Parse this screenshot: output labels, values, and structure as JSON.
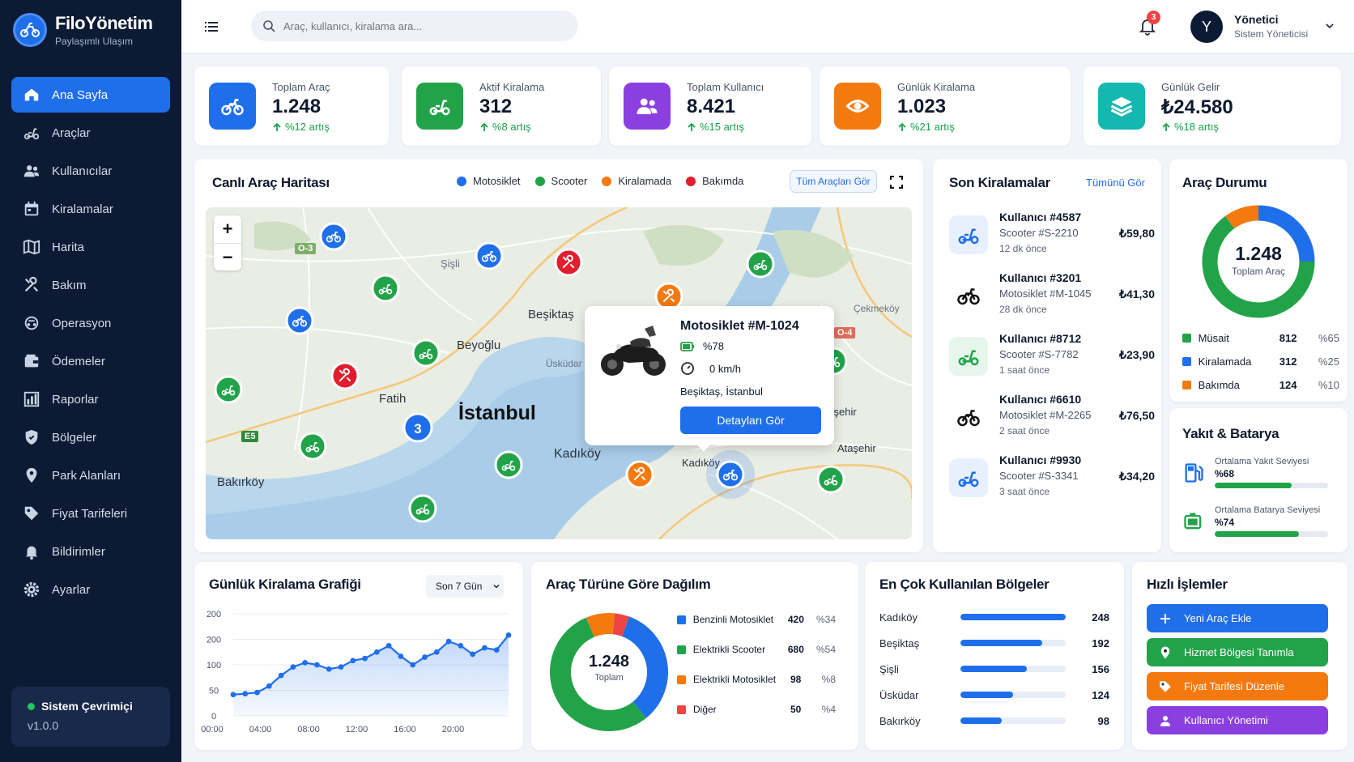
{
  "app": {
    "title": "FiloYönetim",
    "subtitle": "Paylaşımlı Ulaşım"
  },
  "sidebar": {
    "items": [
      {
        "label": "Ana Sayfa",
        "icon": "home-icon",
        "active": true
      },
      {
        "label": "Araçlar",
        "icon": "scooter-icon"
      },
      {
        "label": "Kullanıcılar",
        "icon": "users-icon"
      },
      {
        "label": "Kiralamalar",
        "icon": "calendar-icon"
      },
      {
        "label": "Harita",
        "icon": "map-icon"
      },
      {
        "label": "Bakım",
        "icon": "tools-icon"
      },
      {
        "label": "Operasyon",
        "icon": "operation-icon"
      },
      {
        "label": "Ödemeler",
        "icon": "wallet-icon"
      },
      {
        "label": "Raporlar",
        "icon": "chart-icon"
      },
      {
        "label": "Bölgeler",
        "icon": "shield-icon"
      },
      {
        "label": "Park Alanları",
        "icon": "pin-icon"
      },
      {
        "label": "Fiyat Tarifeleri",
        "icon": "tag-icon"
      },
      {
        "label": "Bildirimler",
        "icon": "bell-icon"
      },
      {
        "label": "Ayarlar",
        "icon": "gear-icon"
      }
    ],
    "status": {
      "label": "Sistem Çevrimiçi",
      "version": "v1.0.0"
    }
  },
  "topbar": {
    "search_placeholder": "Araç, kullanıcı, kiralama ara...",
    "notifications": "3",
    "user": {
      "initial": "Y",
      "name": "Yönetici",
      "role": "Sistem Yöneticisi"
    }
  },
  "stats": [
    {
      "label": "Toplam Araç",
      "value": "1.248",
      "trend": "%12 artış",
      "color": "#1f6feb",
      "icon": "motorcycle-icon"
    },
    {
      "label": "Aktif Kiralama",
      "value": "312",
      "trend": "%8 artış",
      "color": "#22a34a",
      "icon": "scooter-icon"
    },
    {
      "label": "Toplam Kullanıcı",
      "value": "8.421",
      "trend": "%15 artış",
      "color": "#8b3fe0",
      "icon": "users-icon"
    },
    {
      "label": "Günlük Kiralama",
      "value": "1.023",
      "trend": "%21 artış",
      "color": "#f47a10",
      "icon": "eye-icon"
    },
    {
      "label": "Günlük Gelir",
      "value": "₺24.580",
      "trend": "%18 artış",
      "color": "#14b8b0",
      "icon": "layers-icon"
    }
  ],
  "map_card": {
    "title": "Canlı Araç Haritası",
    "legend": [
      {
        "label": "Motosiklet",
        "color": "#1f6feb"
      },
      {
        "label": "Scooter",
        "color": "#22a34a"
      },
      {
        "label": "Kiralamada",
        "color": "#f47a10"
      },
      {
        "label": "Bakımda",
        "color": "#e11d2e"
      }
    ],
    "view_all": "Tüm Araçları Gör",
    "labels": [
      "Beşiktaş",
      "Beyoğlu",
      "Fatih",
      "İstanbul",
      "Kadıköy",
      "Bakırköy",
      "Ataşehir",
      "Kadıköy",
      "Ataşehir",
      "Şişli",
      "Üsküdar",
      "Çekmeköy"
    ],
    "road_labels": [
      "E5",
      "O-3",
      "O-4"
    ],
    "cluster": "3",
    "popup": {
      "title": "Motosiklet #M-1024",
      "battery": "%78",
      "speed": "0 km/h",
      "location": "Beşiktaş, İstanbul",
      "button": "Detayları Gör"
    }
  },
  "recent": {
    "title": "Son Kiralamalar",
    "view_all": "Tümünü Gör",
    "items": [
      {
        "user": "Kullanıcı #4587",
        "vehicle": "Scooter #S-2210",
        "time": "12 dk önce",
        "price": "₺59,80",
        "type": "scooter"
      },
      {
        "user": "Kullanıcı #3201",
        "vehicle": "Motosiklet #M-1045",
        "time": "28 dk önce",
        "price": "₺41,30",
        "type": "moto"
      },
      {
        "user": "Kullanıcı #8712",
        "vehicle": "Scooter #S-7782",
        "time": "1 saat önce",
        "price": "₺23,90",
        "type": "scooter-green"
      },
      {
        "user": "Kullanıcı #6610",
        "vehicle": "Motosiklet #M-2265",
        "time": "2 saat önce",
        "price": "₺76,50",
        "type": "moto"
      },
      {
        "user": "Kullanıcı #9930",
        "vehicle": "Scooter #S-3341",
        "time": "3 saat önce",
        "price": "₺34,20",
        "type": "scooter"
      }
    ]
  },
  "status_card": {
    "title": "Araç Durumu",
    "total": "1.248",
    "total_label": "Toplam Araç",
    "rows": [
      {
        "label": "Müsait",
        "value": "812",
        "pct": "%65",
        "share": 65,
        "color": "#22a34a"
      },
      {
        "label": "Kiralamada",
        "value": "312",
        "pct": "%25",
        "share": 25,
        "color": "#1f6feb"
      },
      {
        "label": "Bakımda",
        "value": "124",
        "pct": "%10",
        "share": 10,
        "color": "#f47a10"
      }
    ]
  },
  "fuel_card": {
    "title": "Yakıt & Batarya",
    "rows": [
      {
        "label": "Ortalama Yakıt Seviyesi",
        "value": "%68",
        "level": 68,
        "icon": "fuel-pump-icon"
      },
      {
        "label": "Ortalama Batarya Seviyesi",
        "value": "%74",
        "level": 74,
        "icon": "battery-icon"
      }
    ]
  },
  "daily_chart": {
    "title": "Günlük Kiralama Grafiği",
    "range": "Son 7 Gün",
    "chart_data": {
      "type": "area",
      "y_ticks": [
        "200",
        "200",
        "100",
        "50",
        "0"
      ],
      "x_ticks": [
        "00:00",
        "04:00",
        "08:00",
        "12:00",
        "16:00",
        "20:00"
      ],
      "x": [
        0,
        1,
        2,
        3,
        4,
        5,
        6,
        7,
        8,
        9,
        10,
        11,
        12,
        13,
        14,
        15,
        16,
        17,
        18,
        19,
        20,
        21,
        22,
        23
      ],
      "values": [
        50,
        52,
        55,
        70,
        95,
        115,
        125,
        120,
        110,
        115,
        130,
        135,
        150,
        165,
        140,
        120,
        138,
        150,
        175,
        165,
        145,
        160,
        155,
        190
      ],
      "color": "#1f6feb"
    }
  },
  "type_chart": {
    "title": "Araç Türüne Göre Dağılım",
    "total": "1.248",
    "total_label": "Toplam",
    "chart_data": {
      "type": "pie",
      "slices": [
        {
          "label": "Benzinli Motosiklet",
          "value": 420,
          "pct": "%34",
          "color": "#1f6feb"
        },
        {
          "label": "Elektrikli Scooter",
          "value": 680,
          "pct": "%54",
          "color": "#22a34a"
        },
        {
          "label": "Elektrikli Motosiklet",
          "value": 98,
          "pct": "%8",
          "color": "#f47a10"
        },
        {
          "label": "Diğer",
          "value": 50,
          "pct": "%4",
          "color": "#ef4444"
        }
      ]
    }
  },
  "regions": {
    "title": "En Çok Kullanılan Bölgeler",
    "max": 248,
    "rows": [
      {
        "label": "Kadıköy",
        "value": 248
      },
      {
        "label": "Beşiktaş",
        "value": 192
      },
      {
        "label": "Şişli",
        "value": 156
      },
      {
        "label": "Üsküdar",
        "value": 124
      },
      {
        "label": "Bakırköy",
        "value": 98
      }
    ]
  },
  "quick": {
    "title": "Hızlı İşlemler",
    "buttons": [
      {
        "label": "Yeni Araç Ekle",
        "color": "#1f6feb",
        "icon": "plus-icon"
      },
      {
        "label": "Hizmet Bölgesi Tanımla",
        "color": "#22a34a",
        "icon": "pin-icon"
      },
      {
        "label": "Fiyat Tarifesi Düzenle",
        "color": "#f47a10",
        "icon": "tag-icon"
      },
      {
        "label": "Kullanıcı Yönetimi",
        "color": "#8b3fe0",
        "icon": "user-icon"
      }
    ]
  }
}
